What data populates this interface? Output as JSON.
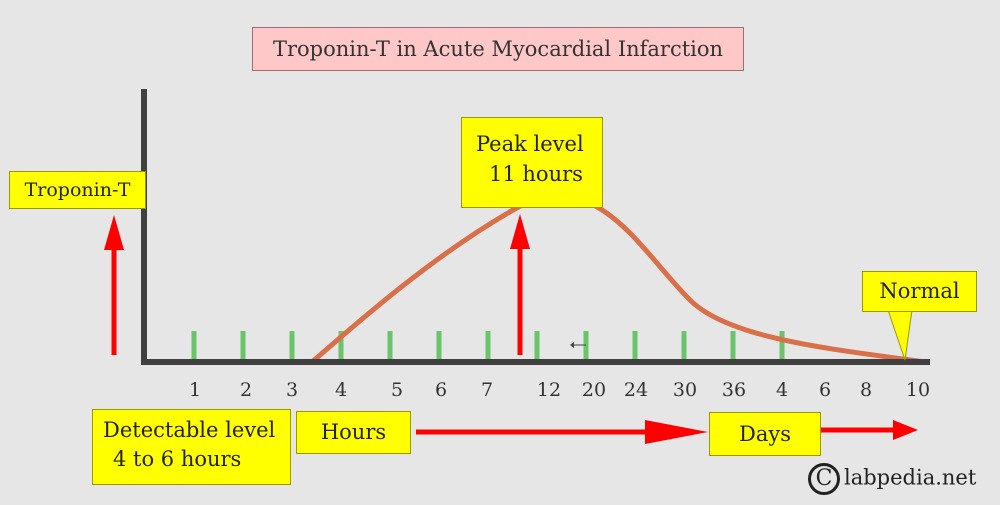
{
  "title": "Troponin-T in Acute Myocardial Infarction",
  "y_label": "Troponin-T",
  "peak_label_line1": "Peak level",
  "peak_label_line2": "11 hours",
  "normal_label": "Normal",
  "detectable_line1": "Detectable level",
  "detectable_line2": "4 to 6 hours",
  "hours_label": "Hours",
  "days_label": "Days",
  "watermark": "labpedia.net",
  "watermark_symbol": "C",
  "colors": {
    "curve": "#d9704a",
    "arrow": "#ff0000",
    "tick": "#6ac46a",
    "axis": "#404040",
    "label_box": "#ffff00",
    "title_box": "#ffc8c8",
    "background": "#e6e6e6"
  },
  "chart_data": {
    "type": "line",
    "x_tick_labels": [
      "1",
      "2",
      "3",
      "4",
      "5",
      "6",
      "7",
      "12",
      "20",
      "24",
      "30",
      "36",
      "4",
      "6",
      "8",
      "10"
    ],
    "x_units": [
      "Hours",
      "Days"
    ],
    "y_label": "Troponin-T",
    "peak": {
      "label": "Peak level",
      "time": "11 hours"
    },
    "detectable": "4 to 6 hours",
    "end_state": "Normal",
    "grid": false
  }
}
